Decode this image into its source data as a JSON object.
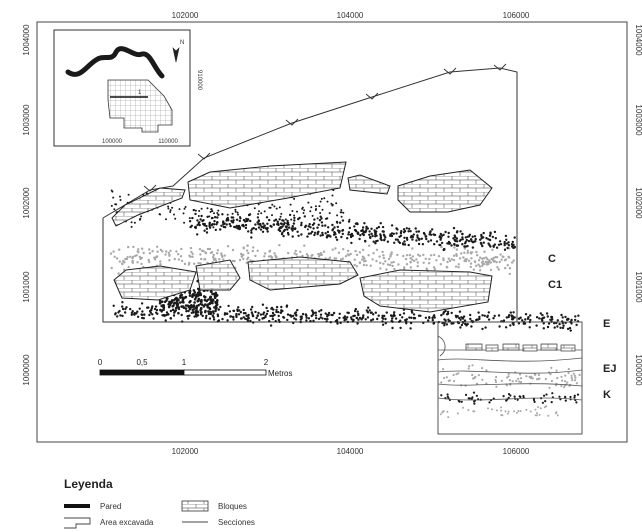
{
  "map": {
    "x_ticks_top": [
      "102000",
      "104000",
      "106000"
    ],
    "x_ticks_bottom": [
      "102000",
      "104000",
      "106000"
    ],
    "y_ticks_left": [
      "1004000",
      "1003000",
      "1002000",
      "1001000",
      "1000000"
    ],
    "y_ticks_right": [
      "1004000",
      "1003000",
      "1002000",
      "1001000",
      "1000000"
    ],
    "zone_labels": [
      "C",
      "C1",
      "E",
      "EJ",
      "K"
    ],
    "scale_bar": {
      "labels": [
        "0",
        "0,5",
        "1",
        "2"
      ],
      "unit": "Metros"
    },
    "inset": {
      "x_ticks": [
        "100000",
        "110000"
      ],
      "y_tick": "910000",
      "block_label": "1",
      "north_label": "N"
    },
    "colors": {
      "dark_points": "#1a1a1a",
      "light_points": "#a8a8a8",
      "wall": "#222222"
    }
  },
  "legend": {
    "title": "Leyenda",
    "items": [
      {
        "icon": "wall-line-icon",
        "label": "Pared"
      },
      {
        "icon": "bricks-hatch-icon",
        "label": "Bloques"
      },
      {
        "icon": "excavated-area-icon",
        "label": "Area excavada"
      },
      {
        "icon": "section-line-icon",
        "label": "Secciones"
      }
    ]
  }
}
